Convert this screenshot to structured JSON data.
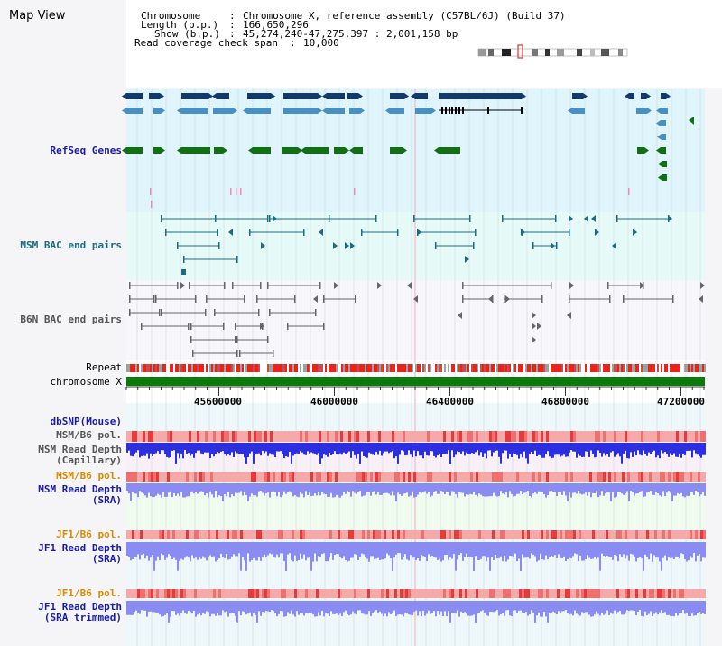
{
  "title": "Map View",
  "header": {
    "chromosome_key": "Chromosome",
    "chromosome_val": "Chromosome X, reference assembly (C57BL/6J) (Build 37)",
    "length_key": "Length (b.p.)",
    "length_val": "166,650,296",
    "show_key": "Show (b.p.)",
    "show_val": "45,274,240-47,275,397 : 2,001,158 bp",
    "coverage_key": "Read coverage check span",
    "coverage_val": "10,000",
    "sep": ":"
  },
  "tracks": {
    "refseq": "RefSeq Genes",
    "msm_bac": "MSM BAC end pairs",
    "b6n_bac": "B6N BAC end pairs",
    "repeat": "Repeat",
    "chromosome": "chromosome X",
    "dbsnp": "dbSNP(Mouse)",
    "msm_pol1": "MSM/B6 pol.",
    "msm_depth_cap_1": "MSM Read Depth",
    "msm_depth_cap_2": "(Capillary)",
    "msm_pol2": "MSM/B6 pol.",
    "msm_depth_sra_1": "MSM Read Depth",
    "msm_depth_sra_2": "(SRA)",
    "jf1_pol1": "JF1/B6 pol.",
    "jf1_depth_sra_1": "JF1 Read Depth",
    "jf1_depth_sra_2": "(SRA)",
    "jf1_pol2": "JF1/B6 pol.",
    "jf1_depth_trim_1": "JF1 Read Depth",
    "jf1_depth_trim_2": "(SRA trimmed)"
  },
  "axis": {
    "ticks": [
      "45600000",
      "46000000",
      "46400000",
      "46800000",
      "47200000"
    ]
  },
  "colors": {
    "gene_dark": "#123a6b",
    "gene_mid": "#4a8fc1",
    "gene_green": "#117011",
    "bac_teal": "#1a6b86",
    "repeat_red": "#e8241d",
    "chrom_green": "#0a7a0a",
    "depth_blue": "#2b2fe0",
    "depth_light": "#8b8cf2",
    "pol_pink": "#f7a8a8",
    "label_blue": "#1a1aa8",
    "label_orange": "#d98a00",
    "label_gray": "#555555"
  }
}
